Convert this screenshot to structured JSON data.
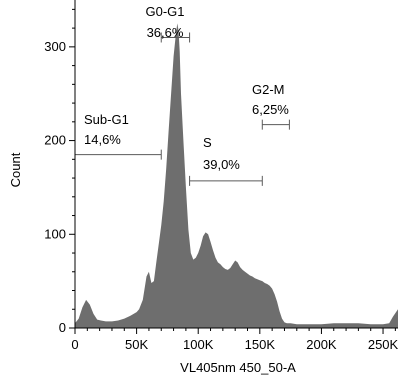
{
  "chart_data": {
    "type": "area",
    "xlabel": "VL405nm 450_50-A",
    "ylabel": "Count",
    "xlim": [
      0,
      262144
    ],
    "ylim": [
      0,
      350
    ],
    "x_ticks": [
      0,
      50000,
      100000,
      150000,
      200000,
      250000
    ],
    "x_tick_labels": [
      "0",
      "50K",
      "100K",
      "150K",
      "200K",
      "250K"
    ],
    "y_ticks": [
      0,
      100,
      200,
      300
    ],
    "y_tick_labels": [
      "0",
      "100",
      "200",
      "300"
    ],
    "colors": {
      "fill": "#6e6e6e",
      "gate": "#5a5a5a"
    },
    "series": [
      {
        "x": [
          0,
          3000,
          6000,
          9000,
          12000,
          15000,
          18000,
          21000,
          25000,
          30000,
          35000,
          40000,
          45000,
          50000,
          52000,
          55000,
          58000,
          60000,
          62000,
          64000,
          66000,
          68000,
          70000,
          72000,
          74000,
          76000,
          78000,
          80000,
          82000,
          83000,
          84000,
          85000,
          86000,
          88000,
          90000,
          92000,
          94000,
          96000,
          98000,
          100000,
          102000,
          104000,
          106000,
          108000,
          110000,
          112000,
          114000,
          116000,
          118000,
          120000,
          122000,
          124000,
          126000,
          128000,
          130000,
          132000,
          134000,
          136000,
          138000,
          140000,
          142000,
          144000,
          146000,
          148000,
          150000,
          152000,
          154000,
          156000,
          158000,
          160000,
          162000,
          164000,
          166000,
          168000,
          170000,
          172000,
          175000,
          180000,
          190000,
          200000,
          210000,
          220000,
          230000,
          240000,
          250000,
          255000,
          258000,
          262144
        ],
        "y": [
          5,
          10,
          22,
          30,
          25,
          15,
          9,
          8,
          7,
          7,
          8,
          10,
          13,
          17,
          20,
          30,
          55,
          60,
          48,
          50,
          70,
          90,
          110,
          135,
          170,
          210,
          250,
          290,
          315,
          325,
          318,
          295,
          250,
          200,
          150,
          105,
          80,
          73,
          75,
          80,
          88,
          98,
          102,
          100,
          92,
          83,
          75,
          70,
          68,
          65,
          63,
          62,
          64,
          68,
          72,
          70,
          65,
          62,
          60,
          58,
          56,
          55,
          53,
          52,
          51,
          50,
          48,
          47,
          45,
          42,
          36,
          28,
          18,
          10,
          6,
          5,
          5,
          4,
          4,
          4,
          5,
          5,
          5,
          4,
          4,
          5,
          12,
          20
        ]
      }
    ],
    "gates": [
      {
        "name": "Sub-G1",
        "pct": "14,6%",
        "x_start": 0,
        "x_end": 70000,
        "y": 185
      },
      {
        "name": "G0-G1",
        "pct": "36,6%",
        "x_start": 70000,
        "x_end": 93000,
        "y": 310
      },
      {
        "name": "S",
        "pct": "39,0%",
        "x_start": 93000,
        "x_end": 152000,
        "y": 157
      },
      {
        "name": "G2-M",
        "pct": "6,25%",
        "x_start": 152000,
        "x_end": 174000,
        "y": 217
      }
    ]
  }
}
